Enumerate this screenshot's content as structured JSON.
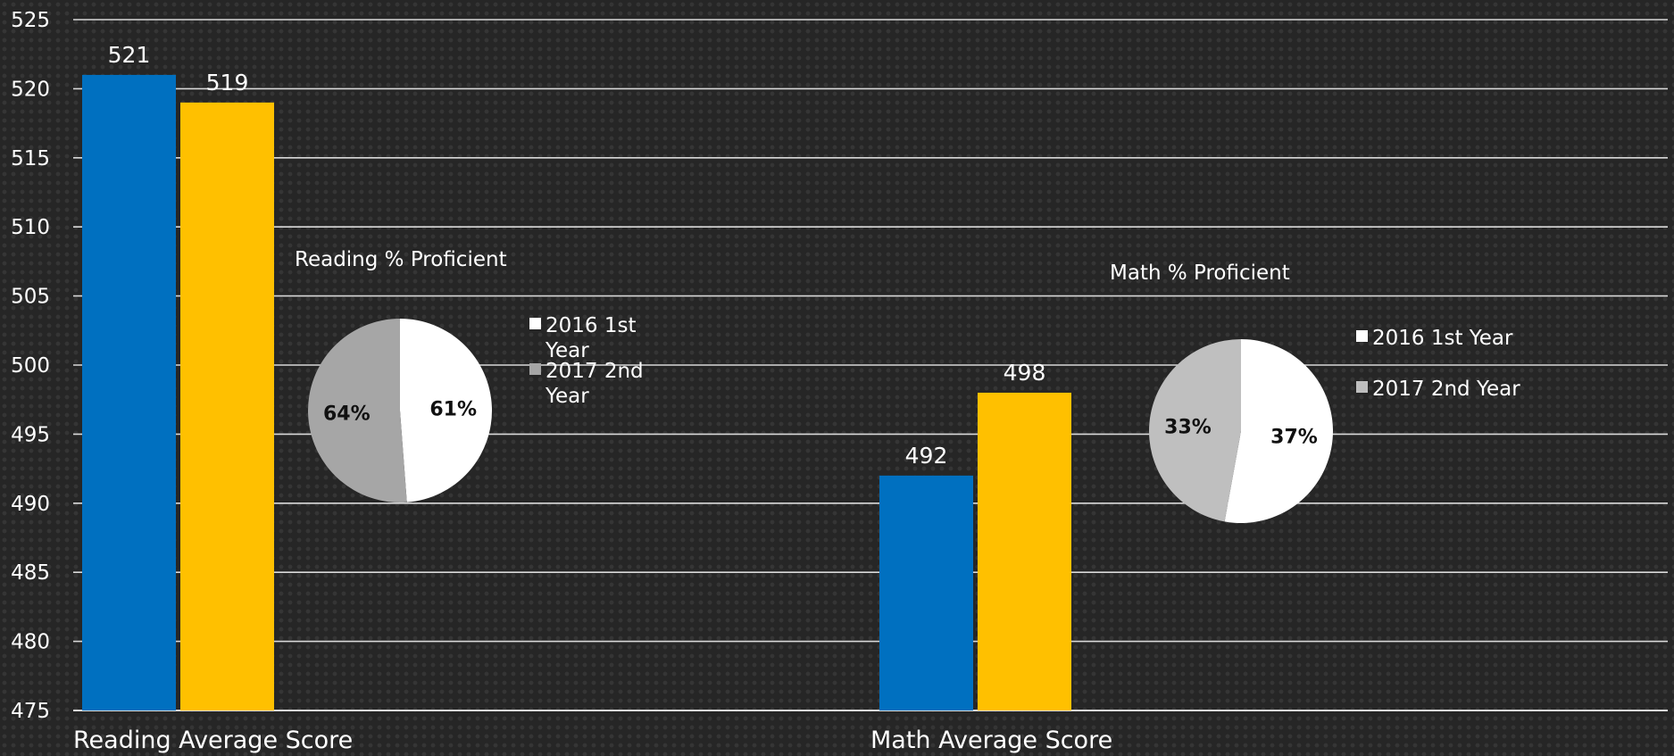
{
  "chart_data": [
    {
      "type": "bar",
      "categories": [
        "Reading Average Score",
        "Math Average Score"
      ],
      "series": [
        {
          "values": [
            521,
            492
          ],
          "color": "#0070C0"
        },
        {
          "values": [
            519,
            498
          ],
          "color": "#FFC000"
        }
      ],
      "ylim": [
        475,
        525
      ],
      "yticks": [
        475,
        480,
        485,
        490,
        495,
        500,
        505,
        510,
        515,
        520,
        525
      ],
      "grid": true,
      "data_labels": true
    },
    {
      "type": "pie",
      "title": "Reading % Proficient",
      "slices": [
        {
          "label": "2016 1st Year",
          "value": 61,
          "display": "61%",
          "color": "#FFFFFF"
        },
        {
          "label": "2017 2nd Year",
          "value": 64,
          "display": "64%",
          "color": "#A6A6A6"
        }
      ],
      "legend": "right"
    },
    {
      "type": "pie",
      "title": "Math % Proficient",
      "slices": [
        {
          "label": "2016 1st Year",
          "value": 37,
          "display": "37%",
          "color": "#FFFFFF"
        },
        {
          "label": "2017 2nd Year",
          "value": 33,
          "display": "33%",
          "color": "#BFBFBF"
        }
      ],
      "legend": "right"
    }
  ]
}
